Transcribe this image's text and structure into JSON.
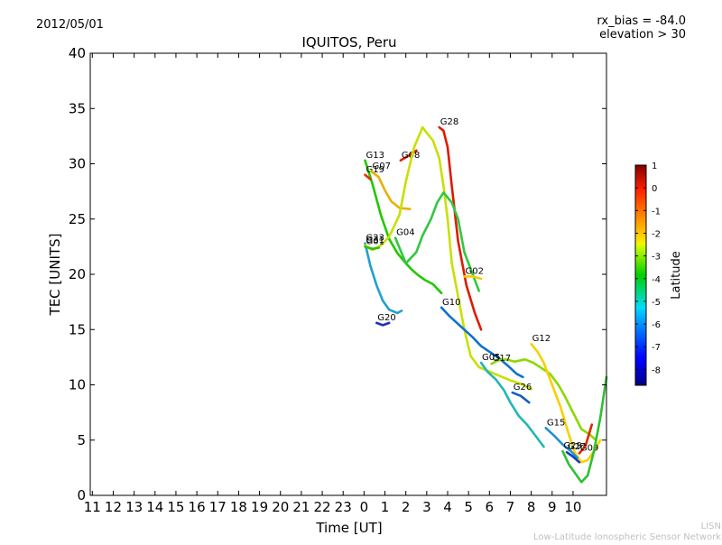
{
  "header": {
    "date": "2012/05/01",
    "rx_bias": "rx_bias = -84.0",
    "elevation": "elevation > 30"
  },
  "footer": {
    "line1": "LISN",
    "line2": "Low-Latitude Ionospheric Sensor Network"
  },
  "chart_data": {
    "type": "line",
    "title": "IQUITOS, Peru",
    "xlabel": "Time [UT]",
    "ylabel": "TEC [UNITS]",
    "x_tick_labels": [
      "11",
      "12",
      "13",
      "14",
      "15",
      "16",
      "17",
      "18",
      "19",
      "20",
      "21",
      "22",
      "23",
      "0",
      "1",
      "2",
      "3",
      "4",
      "5",
      "6",
      "7",
      "8",
      "9",
      "10"
    ],
    "xlim": [
      -13.1,
      11.6
    ],
    "ylim": [
      0,
      40
    ],
    "y_ticks": [
      0,
      5,
      10,
      15,
      20,
      25,
      30,
      35,
      40
    ],
    "grid": false,
    "colorbar": {
      "label": "Latitude",
      "min": -8.7,
      "max": 1.0,
      "ticks": [
        1,
        0,
        -1,
        -2,
        -3,
        -4,
        -5,
        -6,
        -7,
        -8
      ]
    },
    "series": [
      {
        "name": "G13",
        "color": "#22c800",
        "points": [
          [
            0.05,
            30.3
          ],
          [
            0.4,
            28.2
          ],
          [
            0.8,
            25.4
          ],
          [
            1.2,
            23.2
          ],
          [
            1.6,
            21.9
          ],
          [
            2.0,
            21.0
          ],
          [
            2.3,
            20.4
          ],
          [
            2.6,
            19.9
          ],
          [
            2.9,
            19.5
          ],
          [
            3.3,
            19.1
          ],
          [
            3.7,
            18.3
          ]
        ]
      },
      {
        "name": "G19",
        "color": "#e03000",
        "points": [
          [
            0.05,
            29.0
          ],
          [
            0.3,
            28.6
          ]
        ]
      },
      {
        "name": "G07",
        "color": "#e8b000",
        "points": [
          [
            0.35,
            29.3
          ],
          [
            0.7,
            28.8
          ],
          [
            1.0,
            27.6
          ],
          [
            1.3,
            26.6
          ],
          [
            1.7,
            26.0
          ],
          [
            2.2,
            25.9
          ]
        ]
      },
      {
        "name": "G08",
        "color": "#e02000",
        "points": [
          [
            1.75,
            30.3
          ],
          [
            2.2,
            30.8
          ],
          [
            2.5,
            31.2
          ]
        ]
      },
      {
        "name": "G28",
        "color": "#e01a00",
        "points": [
          [
            3.6,
            33.3
          ],
          [
            3.8,
            33.0
          ],
          [
            4.0,
            31.5
          ],
          [
            4.2,
            28.0
          ],
          [
            4.5,
            23.0
          ],
          [
            4.9,
            19.0
          ],
          [
            5.3,
            16.5
          ],
          [
            5.6,
            15.0
          ]
        ]
      },
      {
        "name": "G23",
        "color": "#20a0d0",
        "points": [
          [
            0.05,
            22.8
          ],
          [
            0.3,
            20.8
          ],
          [
            0.6,
            19.0
          ],
          [
            0.9,
            17.6
          ],
          [
            1.2,
            16.8
          ],
          [
            1.6,
            16.5
          ],
          [
            1.8,
            16.7
          ]
        ]
      },
      {
        "name": "G31",
        "color": "#c8e000",
        "points": [
          [
            0.05,
            22.6
          ],
          [
            0.4,
            22.2
          ],
          [
            0.8,
            22.6
          ],
          [
            1.2,
            23.4
          ],
          [
            1.7,
            25.4
          ],
          [
            2.0,
            28.4
          ],
          [
            2.4,
            31.5
          ],
          [
            2.8,
            33.3
          ],
          [
            3.0,
            32.8
          ],
          [
            3.3,
            32.1
          ],
          [
            3.6,
            30.5
          ],
          [
            3.8,
            28.0
          ],
          [
            4.0,
            25.0
          ],
          [
            4.2,
            21.0
          ],
          [
            4.5,
            18.0
          ],
          [
            4.8,
            15.0
          ],
          [
            5.1,
            12.6
          ],
          [
            5.5,
            11.6
          ],
          [
            6.0,
            11.2
          ],
          [
            6.5,
            10.8
          ],
          [
            7.0,
            10.4
          ],
          [
            7.5,
            10.1
          ],
          [
            8.0,
            9.6
          ]
        ]
      },
      {
        "name": "G01",
        "color": "#30c000",
        "points": [
          [
            0.05,
            22.5
          ],
          [
            0.4,
            22.3
          ],
          [
            0.7,
            22.4
          ]
        ]
      },
      {
        "name": "G04",
        "color": "#30c840",
        "points": [
          [
            1.5,
            23.3
          ],
          [
            2.0,
            21.0
          ],
          [
            2.5,
            22.0
          ],
          [
            2.8,
            23.5
          ],
          [
            3.2,
            25.0
          ],
          [
            3.5,
            26.5
          ],
          [
            3.8,
            27.4
          ],
          [
            4.2,
            26.5
          ],
          [
            4.5,
            25.0
          ],
          [
            4.8,
            22.0
          ],
          [
            5.1,
            20.5
          ],
          [
            5.5,
            18.5
          ]
        ]
      },
      {
        "name": "G02",
        "color": "#f0d000",
        "points": [
          [
            4.8,
            19.8
          ],
          [
            5.2,
            19.8
          ],
          [
            5.6,
            19.6
          ]
        ]
      },
      {
        "name": "G10",
        "color": "#1070d0",
        "points": [
          [
            3.7,
            17.0
          ],
          [
            4.1,
            16.2
          ],
          [
            4.5,
            15.5
          ],
          [
            4.8,
            15.0
          ],
          [
            5.2,
            14.3
          ],
          [
            5.6,
            13.5
          ],
          [
            6.0,
            13.0
          ],
          [
            6.4,
            12.5
          ],
          [
            6.9,
            11.7
          ],
          [
            7.3,
            11.0
          ],
          [
            7.6,
            10.7
          ]
        ]
      },
      {
        "name": "G20",
        "color": "#2030c0",
        "points": [
          [
            0.6,
            15.6
          ],
          [
            0.9,
            15.4
          ],
          [
            1.2,
            15.6
          ]
        ]
      },
      {
        "name": "G05",
        "color": "#20b8b0",
        "points": [
          [
            5.6,
            12.0
          ],
          [
            5.9,
            11.2
          ],
          [
            6.3,
            10.5
          ],
          [
            6.7,
            9.5
          ],
          [
            7.0,
            8.4
          ],
          [
            7.4,
            7.2
          ],
          [
            7.8,
            6.4
          ],
          [
            8.2,
            5.4
          ],
          [
            8.6,
            4.4
          ]
        ]
      },
      {
        "name": "G17",
        "color": "#8cd800",
        "points": [
          [
            6.1,
            11.9
          ],
          [
            6.4,
            12.2
          ],
          [
            6.8,
            12.3
          ],
          [
            7.2,
            12.1
          ],
          [
            7.7,
            12.3
          ],
          [
            8.1,
            12.0
          ],
          [
            8.5,
            11.5
          ],
          [
            8.9,
            11.0
          ],
          [
            9.3,
            10.0
          ],
          [
            9.6,
            9.0
          ],
          [
            10.0,
            7.5
          ],
          [
            10.4,
            6.0
          ],
          [
            10.8,
            5.5
          ],
          [
            11.1,
            5.0
          ]
        ]
      },
      {
        "name": "G12",
        "color": "#f8d000",
        "points": [
          [
            8.0,
            13.7
          ],
          [
            8.3,
            13.0
          ],
          [
            8.6,
            12.0
          ],
          [
            9.0,
            10.0
          ],
          [
            9.4,
            8.0
          ],
          [
            9.8,
            5.5
          ],
          [
            10.1,
            3.8
          ],
          [
            10.4,
            3.0
          ],
          [
            10.7,
            3.2
          ],
          [
            11.0,
            4.0
          ],
          [
            11.3,
            5.0
          ]
        ]
      },
      {
        "name": "G26",
        "color": "#1060c0",
        "points": [
          [
            7.1,
            9.3
          ],
          [
            7.5,
            9.0
          ],
          [
            7.9,
            8.4
          ]
        ]
      },
      {
        "name": "G15",
        "color": "#2090d0",
        "points": [
          [
            8.7,
            6.1
          ],
          [
            9.1,
            5.4
          ],
          [
            9.5,
            4.6
          ],
          [
            9.9,
            4.0
          ],
          [
            10.2,
            3.4
          ]
        ]
      },
      {
        "name": "G27",
        "color": "#1040c0",
        "points": [
          [
            9.7,
            3.9
          ],
          [
            10.0,
            3.5
          ],
          [
            10.3,
            3.0
          ]
        ]
      },
      {
        "name": "G09",
        "color": "#e02800",
        "points": [
          [
            10.3,
            3.8
          ],
          [
            10.6,
            4.5
          ],
          [
            10.9,
            6.4
          ]
        ]
      },
      {
        "name": "G29",
        "color": "#30c030",
        "points": [
          [
            9.5,
            4.0
          ],
          [
            9.8,
            2.8
          ],
          [
            10.1,
            2.0
          ],
          [
            10.4,
            1.2
          ],
          [
            10.7,
            1.8
          ],
          [
            11.0,
            4.0
          ],
          [
            11.3,
            7.0
          ],
          [
            11.6,
            10.7
          ]
        ]
      }
    ]
  }
}
